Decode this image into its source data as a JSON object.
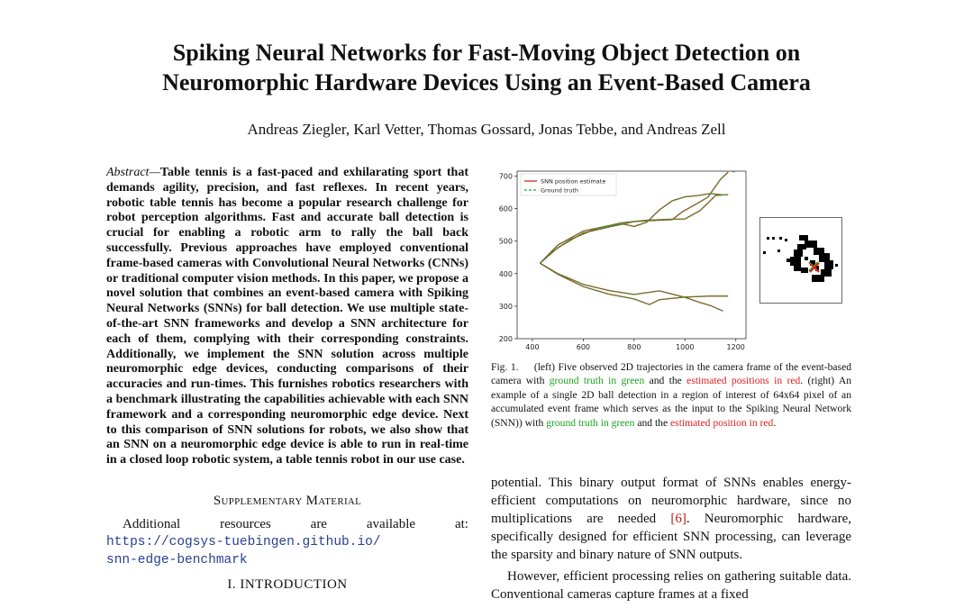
{
  "title_lines": [
    "Spiking Neural Networks for Fast-Moving Object Detection on",
    "Neuromorphic Hardware Devices Using an Event-Based Camera"
  ],
  "authors": "Andreas Ziegler, Karl Vetter, Thomas Gossard, Jonas Tebbe, and Andreas Zell",
  "abstract": {
    "lead": "Abstract—",
    "text": "Table tennis is a fast-paced and exhilarating sport that demands agility, precision, and fast reflexes. In recent years, robotic table tennis has become a popular research challenge for robot perception algorithms. Fast and accurate ball detection is crucial for enabling a robotic arm to rally the ball back successfully. Previous approaches have employed conventional frame-based cameras with Convolutional Neural Networks (CNNs) or traditional computer vision methods. In this paper, we propose a novel solution that combines an event-based camera with Spiking Neural Networks (SNNs) for ball detection. We use multiple state-of-the-art SNN frameworks and develop a SNN architecture for each of them, complying with their corresponding constraints. Additionally, we implement the SNN solution across multiple neuromorphic edge devices, conducting comparisons of their accuracies and run-times. This furnishes robotics researchers with a benchmark illustrating the capabilities achievable with each SNN framework and a corresponding neuromorphic edge device. Next to this comparison of SNN solutions for robots, we also show that an SNN on a neuromorphic edge device is able to run in real-time in a closed loop robotic system, a table tennis robot in our use case."
  },
  "supplementary": {
    "heading": "Supplementary Material",
    "words": [
      "Additional",
      "resources",
      "are",
      "available",
      "at:"
    ],
    "url_line1": "https://cogsys-tuebingen.github.io/",
    "url_line2": "snn-edge-benchmark"
  },
  "intro_heading": "I. INTRODUCTION",
  "figure_caption": {
    "label": "Fig. 1.",
    "part1": "(left) Five observed 2D trajectories in the camera frame of the event-based camera with",
    "gt": "ground truth in green",
    "part2": "and the",
    "est": "estimated positions in red",
    "part3": ". (right) An example of a single 2D ball detection in a region of interest of 64x64 pixel of an accumulated event frame which serves as the input to the Spiking Neural Network (SNN)) with",
    "gt2": "ground truth in green",
    "part4": "and the",
    "est2": "estimated position in red",
    "part5": "."
  },
  "body_right": {
    "p1_a": "potential. This binary output format of SNNs enables energy-efficient computations on neuromorphic hardware, since no multiplications are needed ",
    "p1_cite": "[6]",
    "p1_b": ". Neuromorphic hardware, specifically designed for efficient SNN processing, can leverage the sparsity and binary nature of SNN outputs.",
    "p2": "However, efficient processing relies on gathering suitable data. Conventional cameras capture frames at a fixed"
  },
  "chart_data": {
    "type": "line",
    "title": "",
    "xlabel": "",
    "ylabel": "",
    "xlim": [
      340,
      1240
    ],
    "ylim": [
      200,
      715
    ],
    "xticks": [
      400,
      600,
      800,
      1000,
      1200
    ],
    "yticks": [
      200,
      300,
      400,
      500,
      600,
      700
    ],
    "legend": {
      "placement": "top-left",
      "entries": [
        "SNN position estimate",
        "Ground truth"
      ]
    },
    "colors": {
      "estimate": "#d62728",
      "ground_truth": "#2ca02c"
    },
    "series": [
      {
        "name": "SNN position estimate",
        "trajectories": [
          {
            "x": [
              430,
              480,
              550,
              650,
              750,
              850,
              930,
              1000,
              1060,
              1120,
              1170
            ],
            "y": [
              432,
              468,
              505,
              538,
              556,
              564,
              567,
              568,
              594,
              640,
              643
            ]
          },
          {
            "x": [
              430,
              500,
              600,
              700,
              800,
              900,
              950,
              990,
              1040,
              1090,
              1140,
              1170
            ],
            "y": [
              432,
              480,
              525,
              543,
              560,
              564,
              566,
              590,
              612,
              635,
              690,
              712
            ]
          },
          {
            "x": [
              430,
              500,
              600,
              700,
              760,
              800,
              850,
              900,
              950,
              1000,
              1050,
              1100,
              1150
            ],
            "y": [
              432,
              488,
              531,
              547,
              552,
              545,
              558,
              596,
              624,
              636,
              640,
              646,
              642
            ]
          },
          {
            "x": [
              430,
              500,
              600,
              700,
              800,
              900,
              1000,
              1060,
              1100,
              1150
            ],
            "y": [
              432,
              400,
              367,
              348,
              336,
              347,
              327,
              311,
              302,
              285
            ]
          },
          {
            "x": [
              430,
              500,
              600,
              700,
              800,
              860,
              900,
              1000,
              1100,
              1170
            ],
            "y": [
              432,
              398,
              360,
              337,
              322,
              305,
              320,
              328,
              331,
              331
            ]
          }
        ]
      },
      {
        "name": "Ground truth",
        "trajectories": [
          {
            "x": [
              430,
              480,
              550,
              650,
              750,
              850,
              930,
              1000,
              1060,
              1120,
              1170
            ],
            "y": [
              432,
              468,
              505,
              538,
              556,
              564,
              567,
              568,
              594,
              640,
              643
            ]
          },
          {
            "x": [
              430,
              500,
              600,
              700,
              800,
              900,
              950,
              990,
              1040,
              1090,
              1140,
              1170
            ],
            "y": [
              432,
              480,
              525,
              543,
              560,
              564,
              566,
              590,
              612,
              635,
              690,
              712
            ]
          },
          {
            "x": [
              430,
              500,
              600,
              700,
              760,
              800,
              850,
              900,
              950,
              1000,
              1050,
              1100,
              1150
            ],
            "y": [
              432,
              488,
              531,
              547,
              552,
              545,
              558,
              596,
              624,
              636,
              640,
              646,
              642
            ]
          },
          {
            "x": [
              430,
              500,
              600,
              700,
              800,
              900,
              1000,
              1060,
              1100,
              1150
            ],
            "y": [
              432,
              400,
              367,
              348,
              336,
              347,
              327,
              311,
              302,
              285
            ]
          },
          {
            "x": [
              430,
              500,
              600,
              700,
              800,
              860,
              900,
              1000,
              1100,
              1170
            ],
            "y": [
              432,
              398,
              360,
              337,
              322,
              305,
              320,
              328,
              331,
              331
            ]
          },
          {
            "x": [
              1185,
              1195
            ],
            "y": [
              715,
              712
            ]
          }
        ]
      }
    ]
  },
  "inset_data": {
    "grid_size": 64,
    "event_pixels": "black blob of accumulated events forming a partial ring around the ball",
    "ground_truth_marker": "green x",
    "estimate_marker": "red x"
  }
}
